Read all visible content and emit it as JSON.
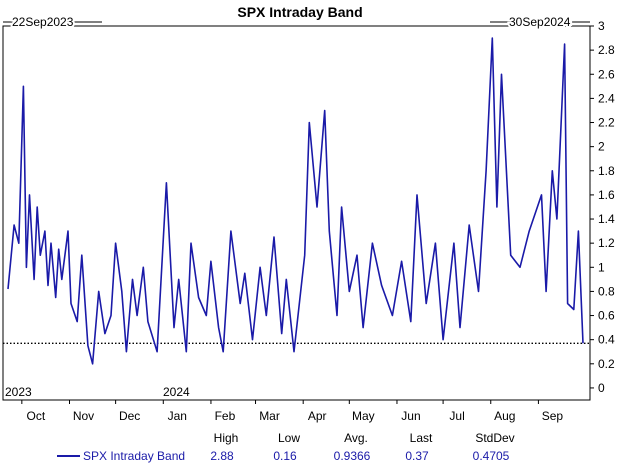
{
  "chart_data": {
    "type": "line",
    "title": "SPX Intraday Band",
    "start_label": "22Sep2023",
    "end_label": "30Sep2024",
    "year_labels": [
      "2023",
      "2024"
    ],
    "x_months": [
      "Oct",
      "Nov",
      "Dec",
      "Jan",
      "Feb",
      "Mar",
      "Apr",
      "May",
      "Jun",
      "Jul",
      "Aug",
      "Sep"
    ],
    "ylim": [
      -0.1,
      3.0
    ],
    "yticks": [
      0,
      0.2,
      0.4,
      0.6,
      0.8,
      1,
      1.2,
      1.4,
      1.6,
      1.8,
      2,
      2.2,
      2.4,
      2.6,
      2.8,
      3
    ],
    "ref_line": 0.37,
    "series": [
      {
        "name": "SPX Intraday Band",
        "color": "#1a1aa8",
        "x": [
          "2023-09-22",
          "2023-09-26",
          "2023-09-29",
          "2023-10-02",
          "2023-10-04",
          "2023-10-06",
          "2023-10-09",
          "2023-10-11",
          "2023-10-13",
          "2023-10-16",
          "2023-10-18",
          "2023-10-20",
          "2023-10-23",
          "2023-10-25",
          "2023-10-27",
          "2023-10-31",
          "2023-11-02",
          "2023-11-06",
          "2023-11-09",
          "2023-11-13",
          "2023-11-16",
          "2023-11-20",
          "2023-11-24",
          "2023-11-28",
          "2023-12-01",
          "2023-12-05",
          "2023-12-08",
          "2023-12-12",
          "2023-12-15",
          "2023-12-19",
          "2023-12-22",
          "2023-12-28",
          "2024-01-03",
          "2024-01-08",
          "2024-01-11",
          "2024-01-16",
          "2024-01-19",
          "2024-01-24",
          "2024-01-29",
          "2024-02-01",
          "2024-02-06",
          "2024-02-09",
          "2024-02-14",
          "2024-02-20",
          "2024-02-23",
          "2024-02-28",
          "2024-03-04",
          "2024-03-08",
          "2024-03-13",
          "2024-03-18",
          "2024-03-21",
          "2024-03-26",
          "2024-04-02",
          "2024-04-05",
          "2024-04-10",
          "2024-04-15",
          "2024-04-18",
          "2024-04-23",
          "2024-04-26",
          "2024-05-01",
          "2024-05-06",
          "2024-05-10",
          "2024-05-16",
          "2024-05-22",
          "2024-05-29",
          "2024-06-04",
          "2024-06-10",
          "2024-06-14",
          "2024-06-20",
          "2024-06-26",
          "2024-07-01",
          "2024-07-08",
          "2024-07-12",
          "2024-07-18",
          "2024-07-24",
          "2024-07-29",
          "2024-08-02",
          "2024-08-05",
          "2024-08-08",
          "2024-08-14",
          "2024-08-20",
          "2024-08-26",
          "2024-09-03",
          "2024-09-06",
          "2024-09-10",
          "2024-09-13",
          "2024-09-18",
          "2024-09-20",
          "2024-09-24",
          "2024-09-27",
          "2024-09-30"
        ],
        "values": [
          0.82,
          1.35,
          1.2,
          2.5,
          1.0,
          1.6,
          0.9,
          1.5,
          1.1,
          1.3,
          0.85,
          1.2,
          0.75,
          1.15,
          0.9,
          1.3,
          0.7,
          0.55,
          1.1,
          0.35,
          0.2,
          0.8,
          0.45,
          0.6,
          1.2,
          0.8,
          0.3,
          0.9,
          0.6,
          1.0,
          0.55,
          0.3,
          1.7,
          0.5,
          0.9,
          0.3,
          1.2,
          0.75,
          0.6,
          1.05,
          0.5,
          0.3,
          1.3,
          0.7,
          0.95,
          0.4,
          1.0,
          0.6,
          1.25,
          0.45,
          0.9,
          0.3,
          1.1,
          2.2,
          1.5,
          2.3,
          1.3,
          0.6,
          1.5,
          0.8,
          1.1,
          0.5,
          1.2,
          0.85,
          0.6,
          1.05,
          0.55,
          1.6,
          0.7,
          1.2,
          0.4,
          1.2,
          0.5,
          1.35,
          0.8,
          1.8,
          2.9,
          1.5,
          2.6,
          1.1,
          1.0,
          1.3,
          1.6,
          0.8,
          1.8,
          1.4,
          2.85,
          0.7,
          0.65,
          1.3,
          0.37
        ]
      }
    ],
    "stats": {
      "headers": [
        "High",
        "Low",
        "Avg.",
        "Last",
        "StdDev"
      ],
      "values": [
        "2.88",
        "0.16",
        "0.9366",
        "0.37",
        "0.4705"
      ]
    }
  }
}
